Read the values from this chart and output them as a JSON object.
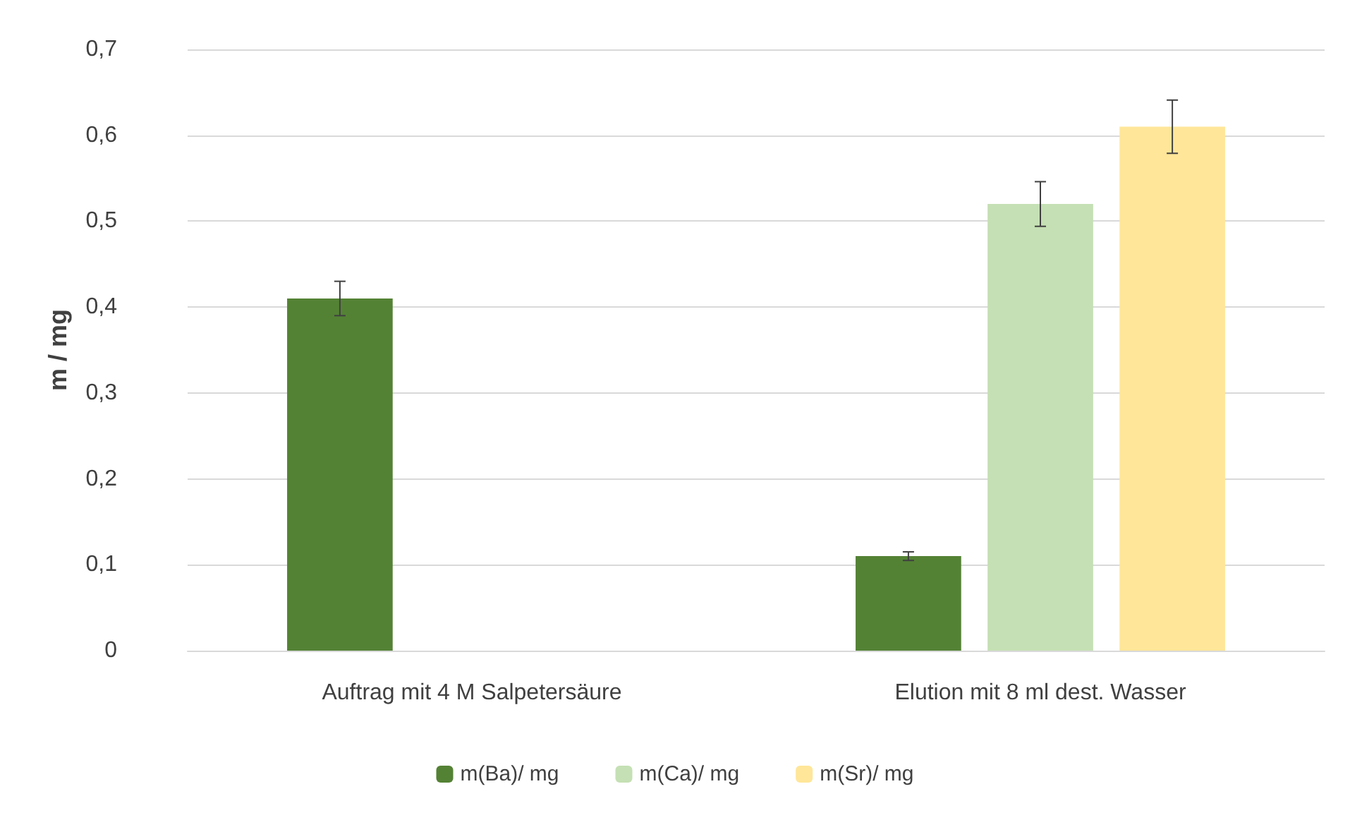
{
  "chart_data": {
    "type": "bar",
    "ylabel": "m / mg",
    "categories": [
      "Auftrag mit 4 M Salpetersäure",
      "Elution mit 8 ml dest. Wasser"
    ],
    "series": [
      {
        "name": "m(Ba)/ mg",
        "color": "#548235",
        "values": [
          0.41,
          0.11
        ],
        "errors": [
          0.02,
          0.005
        ]
      },
      {
        "name": "m(Ca)/ mg",
        "color": "#c5e0b4",
        "values": [
          null,
          0.52
        ],
        "errors": [
          null,
          0.026
        ]
      },
      {
        "name": "m(Sr)/ mg",
        "color": "#ffe699",
        "values": [
          null,
          0.61
        ],
        "errors": [
          null,
          0.031
        ]
      }
    ],
    "ylim": [
      0,
      0.7
    ],
    "yticks": [
      0,
      {
        "value": 0.1,
        "label": "0,1"
      },
      {
        "value": 0.2,
        "label": "0,2"
      },
      {
        "value": 0.3,
        "label": "0,3"
      },
      {
        "value": 0.4,
        "label": "0,4"
      },
      {
        "value": 0.5,
        "label": "0,5"
      },
      {
        "value": 0.6,
        "label": "0,6"
      },
      {
        "value": 0.7,
        "label": "0,7"
      }
    ],
    "grid": "y",
    "legend": "bottom"
  }
}
